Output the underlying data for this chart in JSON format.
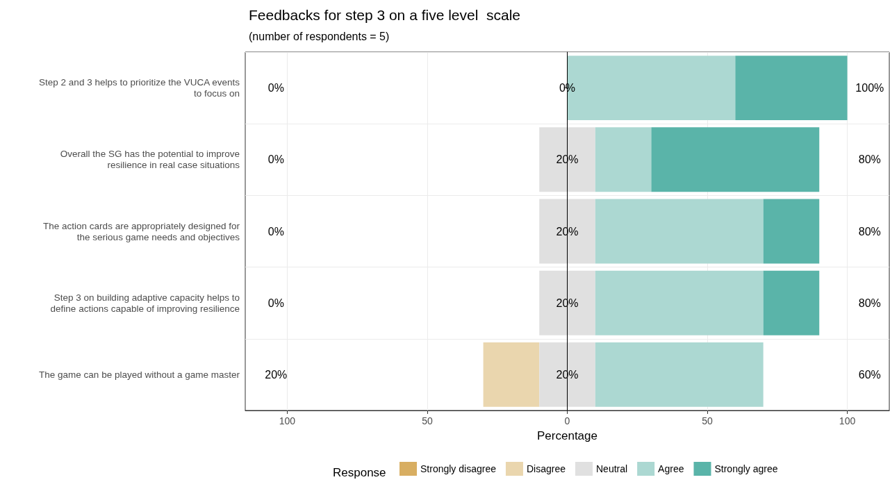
{
  "chart_data": {
    "type": "bar",
    "orientation": "horizontal",
    "title": "Feedbacks for step 3 on a five level  scale",
    "subtitle": "(number of respondents = 5)",
    "xlabel": "Percentage",
    "legend_title": "Response",
    "categories": [
      "Step 2 and 3 helps to prioritize the VUCA events\nto focus on",
      "Overall the SG has the potential to improve\nresilience in real case situations",
      "The action cards are appropriately designed for\nthe serious game needs and objectives",
      "Step 3 on building adaptive capacity helps to\ndefine actions capable of improving resilience",
      "The game can be played without a game master"
    ],
    "series": [
      {
        "name": "Strongly disagree",
        "color": "#d8ae62",
        "values": [
          0,
          0,
          0,
          0,
          0
        ],
        "base": [
          null,
          null,
          null,
          null,
          null
        ]
      },
      {
        "name": "Disagree",
        "color": "#ead6ae",
        "values": [
          0,
          0,
          0,
          0,
          20
        ],
        "base": [
          null,
          null,
          null,
          null,
          -30
        ]
      },
      {
        "name": "Neutral",
        "color": "#e0e0e0",
        "values": [
          0,
          20,
          20,
          20,
          20
        ],
        "base": [
          null,
          -10,
          -10,
          -10,
          -10
        ]
      },
      {
        "name": "Agree",
        "color": "#acd8d2",
        "values": [
          60,
          20,
          60,
          60,
          60
        ],
        "base": [
          0,
          10,
          10,
          10,
          10
        ]
      },
      {
        "name": "Strongly agree",
        "color": "#5ab4a9",
        "values": [
          40,
          60,
          20,
          20,
          0
        ],
        "base": [
          60,
          30,
          70,
          70,
          null
        ]
      }
    ],
    "xlim": [
      -115,
      115
    ],
    "xticks": [
      {
        "value": -100,
        "label": "100"
      },
      {
        "value": -50,
        "label": "50"
      },
      0,
      50,
      100
    ],
    "ref_lines": [
      {
        "axis": "x",
        "value": 0,
        "color": "#000000"
      }
    ],
    "annotations": [
      "0%",
      "0%",
      "100%",
      "0%",
      "20%",
      "80%",
      "0%",
      "20%",
      "80%",
      "0%",
      "20%",
      "80%",
      "20%",
      "20%",
      "60%"
    ],
    "grid": true,
    "legend": "bottom"
  }
}
